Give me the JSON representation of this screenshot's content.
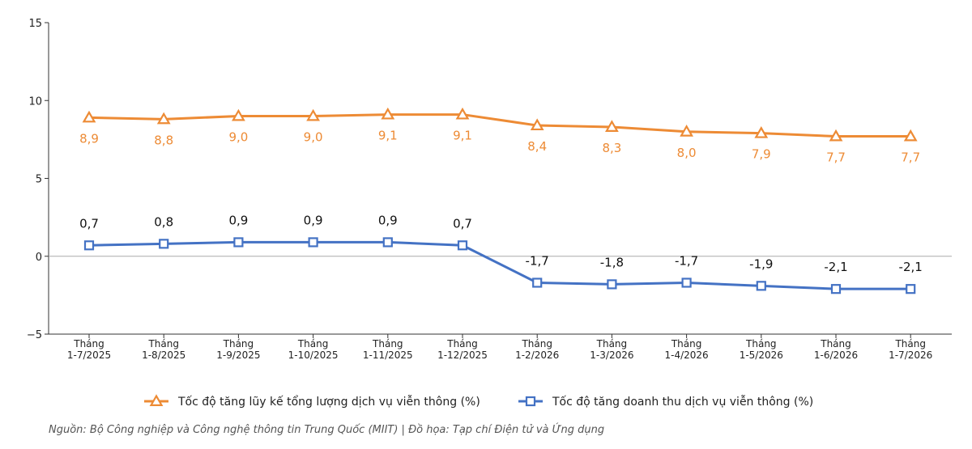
{
  "chart_data": {
    "type": "line",
    "categories": [
      [
        "Tháng",
        "1-7/2025"
      ],
      [
        "Tháng",
        "1-8/2025"
      ],
      [
        "Tháng",
        "1-9/2025"
      ],
      [
        "Tháng",
        "1-10/2025"
      ],
      [
        "Tháng",
        "1-11/2025"
      ],
      [
        "Tháng",
        "1-12/2025"
      ],
      [
        "Tháng",
        "1-2/2026"
      ],
      [
        "Tháng",
        "1-3/2026"
      ],
      [
        "Tháng",
        "1-4/2026"
      ],
      [
        "Tháng",
        "1-5/2026"
      ],
      [
        "Tháng",
        "1-6/2026"
      ],
      [
        "Tháng",
        "1-7/2026"
      ]
    ],
    "series": [
      {
        "name": "Tốc độ tăng lũy kế tổng lượng dịch vụ viễn thông (%)",
        "color": "#ED8B35",
        "marker": "triangle",
        "values": [
          8.9,
          8.8,
          9.0,
          9.0,
          9.1,
          9.1,
          8.4,
          8.3,
          8.0,
          7.9,
          7.7,
          7.7
        ],
        "labels": [
          "8,9",
          "8,8",
          "9,0",
          "9,0",
          "9,1",
          "9,1",
          "8,4",
          "8,3",
          "8,0",
          "7,9",
          "7,7",
          "7,7"
        ],
        "label_position": "below"
      },
      {
        "name": "Tốc độ tăng doanh thu dịch vụ viễn thông (%)",
        "color": "#4472C4",
        "marker": "square",
        "values": [
          0.7,
          0.8,
          0.9,
          0.9,
          0.9,
          0.7,
          -1.7,
          -1.8,
          -1.7,
          -1.9,
          -2.1,
          -2.1
        ],
        "labels": [
          "0,7",
          "0,8",
          "0,9",
          "0,9",
          "0,9",
          "0,7",
          "-1,7",
          "-1,8",
          "-1,7",
          "-1,9",
          "-2,1",
          "-2,1"
        ],
        "label_position": "above"
      }
    ],
    "ylim": [
      -5,
      15
    ],
    "yticks": [
      15,
      10,
      5,
      0,
      -5
    ],
    "ytick_labels": [
      "15",
      "10",
      "5",
      "0",
      "−5"
    ],
    "zero_line": true,
    "grid": false,
    "legend_position": "bottom"
  },
  "footer": {
    "source": "Nguồn: Bộ Công nghiệp và Công nghệ thông tin Trung Quốc (MIIT)   |   Đồ họa: Tạp chí Điện tử và Ứng dụng"
  }
}
